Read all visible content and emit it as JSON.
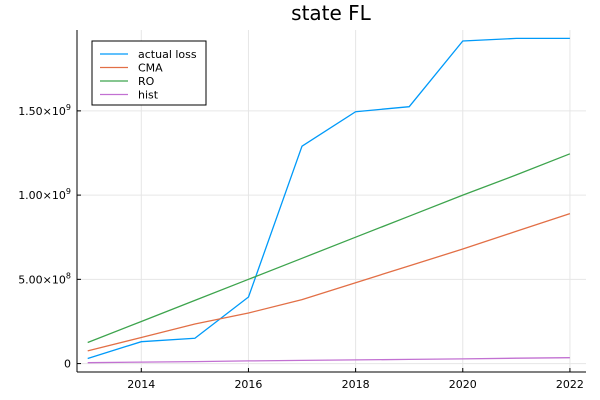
{
  "chart_data": {
    "type": "line",
    "title": "state FL",
    "xlabel": "",
    "ylabel": "",
    "xlim": [
      2012.8,
      2022.3
    ],
    "ylim": [
      -50000000,
      1980000000
    ],
    "grid": true,
    "legend_position": "top-left",
    "x_ticks": [
      2014,
      2016,
      2018,
      2020,
      2022
    ],
    "x_tick_labels": [
      "2014",
      "2016",
      "2018",
      "2020",
      "2022"
    ],
    "y_ticks": [
      0,
      500000000,
      1000000000,
      1500000000
    ],
    "y_tick_labels": [
      {
        "mantissa": "0",
        "exponent": ""
      },
      {
        "mantissa": "5.00×10",
        "exponent": "8"
      },
      {
        "mantissa": "1.00×10",
        "exponent": "9"
      },
      {
        "mantissa": "1.50×10",
        "exponent": "9"
      }
    ],
    "series": [
      {
        "name": "actual loss",
        "color": "#009af9",
        "points": [
          [
            2013,
            30000000
          ],
          [
            2014,
            130000000
          ],
          [
            2015,
            150000000
          ],
          [
            2016,
            395000000
          ],
          [
            2017,
            1290000000
          ],
          [
            2018,
            1495000000
          ],
          [
            2019,
            1525000000
          ],
          [
            2020,
            1915000000
          ],
          [
            2021,
            1930000000
          ],
          [
            2022,
            1930000000
          ]
        ]
      },
      {
        "name": "CMA",
        "color": "#e26f46",
        "points": [
          [
            2013,
            75000000
          ],
          [
            2014,
            155000000
          ],
          [
            2015,
            235000000
          ],
          [
            2016,
            300000000
          ],
          [
            2017,
            380000000
          ],
          [
            2018,
            480000000
          ],
          [
            2019,
            580000000
          ],
          [
            2020,
            680000000
          ],
          [
            2021,
            785000000
          ],
          [
            2022,
            890000000
          ]
        ]
      },
      {
        "name": "RO",
        "color": "#3da44d",
        "points": [
          [
            2013,
            125000000
          ],
          [
            2014,
            250000000
          ],
          [
            2015,
            375000000
          ],
          [
            2016,
            500000000
          ],
          [
            2017,
            625000000
          ],
          [
            2018,
            750000000
          ],
          [
            2019,
            875000000
          ],
          [
            2020,
            1000000000
          ],
          [
            2021,
            1120000000
          ],
          [
            2022,
            1245000000
          ]
        ]
      },
      {
        "name": "hist",
        "color": "#c271d2",
        "points": [
          [
            2013,
            5000000
          ],
          [
            2014,
            9000000
          ],
          [
            2015,
            12000000
          ],
          [
            2016,
            16000000
          ],
          [
            2017,
            19000000
          ],
          [
            2018,
            22000000
          ],
          [
            2019,
            25000000
          ],
          [
            2020,
            28000000
          ],
          [
            2021,
            32000000
          ],
          [
            2022,
            35000000
          ]
        ]
      }
    ]
  }
}
